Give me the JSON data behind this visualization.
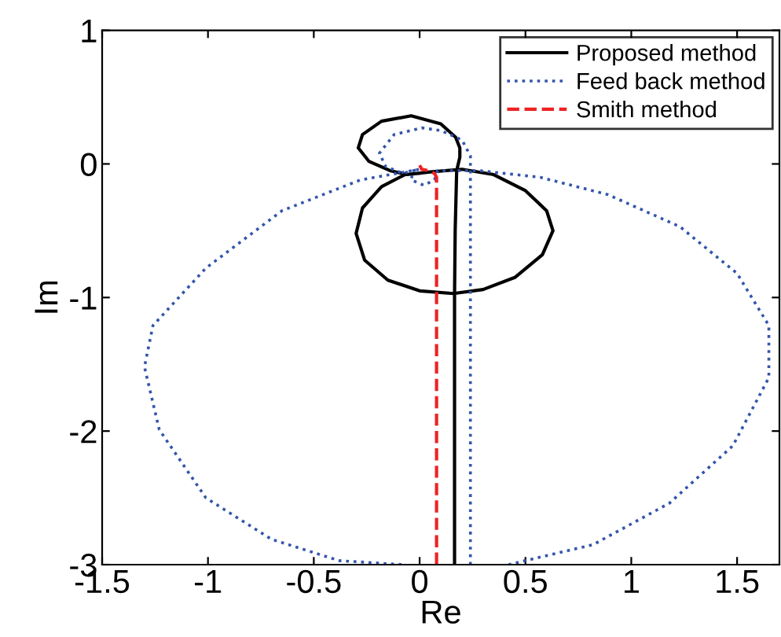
{
  "chart_data": {
    "type": "line",
    "xlabel": "Re",
    "ylabel": "Im",
    "xlim": [
      -1.5,
      1.7
    ],
    "ylim": [
      -3,
      1
    ],
    "xticks": [
      -1.5,
      -1,
      -0.5,
      0,
      0.5,
      1,
      1.5
    ],
    "yticks": [
      -3,
      -2,
      -1,
      0,
      1
    ],
    "grid": false,
    "legend": "top right",
    "marker": "none",
    "series": [
      {
        "name": "Proposed method",
        "color": "#000000",
        "line_style": "solid",
        "x": [
          0.165,
          0.165,
          0.168,
          0.175,
          0.19,
          0.19,
          0.17,
          0.1,
          -0.04,
          -0.18,
          -0.27,
          -0.29,
          -0.24,
          -0.14,
          -0.06,
          0.05,
          0.2,
          0.35,
          0.5,
          0.6,
          0.63,
          0.58,
          0.45,
          0.3,
          0.16,
          0.0,
          -0.15,
          -0.26,
          -0.3,
          -0.27,
          -0.18,
          -0.07,
          0.0
        ],
        "values": [
          -3,
          -0.98,
          -0.5,
          -0.05,
          0.05,
          0.12,
          0.2,
          0.3,
          0.36,
          0.32,
          0.22,
          0.12,
          0.02,
          -0.05,
          -0.08,
          -0.06,
          -0.04,
          -0.08,
          -0.2,
          -0.35,
          -0.5,
          -0.68,
          -0.85,
          -0.94,
          -0.97,
          -0.95,
          -0.87,
          -0.72,
          -0.52,
          -0.33,
          -0.17,
          -0.08,
          -0.07
        ]
      },
      {
        "name": "Feed back method",
        "color": "#3355aa",
        "line_style": "dotted",
        "x": [
          0.42,
          0.82,
          1.18,
          1.48,
          1.65,
          1.65,
          1.5,
          1.23,
          0.89,
          0.57,
          0.28,
          0.085,
          0.07,
          0.02,
          -0.04,
          -0.03,
          0.0,
          -0.28,
          -0.65,
          -1.01,
          -1.26,
          -1.3,
          -1.23,
          -1.01,
          -0.7,
          -0.38,
          -0.08,
          0.0,
          0.24,
          0.24,
          0.24,
          0.2,
          0.1,
          0.01,
          -0.12,
          -0.19,
          -0.16,
          -0.08,
          0.0
        ],
        "values": [
          -3,
          -2.85,
          -2.54,
          -2.11,
          -1.6,
          -1.21,
          -0.82,
          -0.47,
          -0.23,
          -0.1,
          -0.05,
          -0.05,
          -0.12,
          -0.16,
          -0.12,
          -0.05,
          -0.04,
          -0.12,
          -0.35,
          -0.78,
          -1.21,
          -1.52,
          -1.99,
          -2.5,
          -2.81,
          -2.97,
          -3,
          null,
          -3,
          -1.0,
          0.06,
          0.18,
          0.25,
          0.27,
          0.22,
          0.08,
          -0.02,
          -0.07,
          -0.04
        ]
      },
      {
        "name": "Smith method",
        "color": "#ee2222",
        "line_style": "dashed",
        "x": [
          0.08,
          0.08,
          0.07,
          0.04,
          0.01,
          0.0
        ],
        "values": [
          -3,
          -0.1,
          -0.07,
          -0.05,
          -0.04,
          -0.01
        ]
      }
    ]
  }
}
